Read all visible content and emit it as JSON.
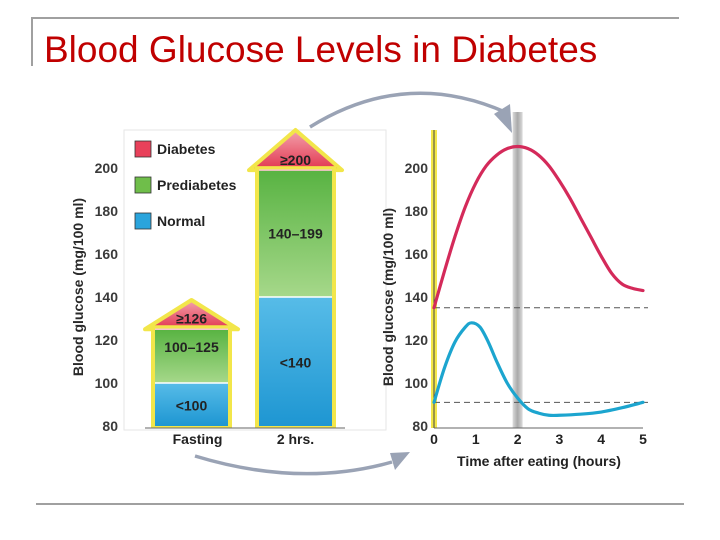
{
  "slide": {
    "title": "Blood Glucose Levels in Diabetes"
  },
  "colors": {
    "diabetes": "#e8405a",
    "prediabetes": "#6fbe4a",
    "normal": "#2aa4dc",
    "diabetic_curve": "#d42a5a",
    "normal_curve": "#1ca5cf",
    "outline_yellow": "#f2e64a",
    "arrow_gray": "#9aa3b5"
  },
  "chart_data": [
    {
      "type": "bar",
      "ylabel": "Blood glucose (mg/100 ml)",
      "ylim": [
        80,
        200
      ],
      "yticks": [
        "200",
        "180",
        "160",
        "140",
        "120",
        "100",
        "80"
      ],
      "categories": [
        "Fasting",
        "2 hrs."
      ],
      "legend": [
        "Diabetes",
        "Prediabetes",
        "Normal"
      ],
      "stacks": [
        {
          "category": "Fasting",
          "normal_max": 100,
          "prediabetes_max": 125,
          "labels": {
            "normal": "<100",
            "prediabetes": "100–125",
            "diabetes": "≥126"
          }
        },
        {
          "category": "2 hrs.",
          "normal_max": 140,
          "prediabetes_max": 199,
          "labels": {
            "normal": "<140",
            "prediabetes": "140–199",
            "diabetes": "≥200"
          }
        }
      ]
    },
    {
      "type": "line",
      "ylabel": "Blood glucose (mg/100 ml)",
      "xlabel": "Time after eating (hours)",
      "xlim": [
        0,
        5
      ],
      "ylim": [
        80,
        200
      ],
      "xticks": [
        "0",
        "1",
        "2",
        "3",
        "4",
        "5"
      ],
      "yticks": [
        "200",
        "180",
        "160",
        "140",
        "120",
        "100",
        "80"
      ],
      "series": [
        {
          "x": [
            0,
            0.25,
            0.5,
            0.75,
            1,
            1.25,
            1.5,
            1.75,
            2,
            2.25,
            2.5,
            2.75,
            3,
            3.25,
            3.5,
            3.75,
            4,
            4.25,
            4.5,
            4.75,
            5
          ],
          "y": [
            135,
            152,
            168,
            182,
            193,
            201,
            206,
            209,
            210,
            209,
            206,
            201,
            194,
            186,
            177,
            168,
            159,
            151,
            146,
            144,
            143
          ]
        },
        {
          "x": [
            0,
            0.25,
            0.5,
            0.75,
            0.9,
            1.1,
            1.3,
            1.5,
            1.75,
            2,
            2.25,
            2.5,
            2.75,
            3,
            3.5,
            4,
            4.5,
            5
          ],
          "y": [
            91,
            107,
            119,
            126,
            128,
            126,
            119,
            110,
            100,
            93,
            88,
            86,
            85,
            85,
            85.5,
            86.5,
            88.5,
            91
          ]
        }
      ],
      "reference_lines": [
        135,
        91
      ],
      "highlight_x": 2
    }
  ]
}
